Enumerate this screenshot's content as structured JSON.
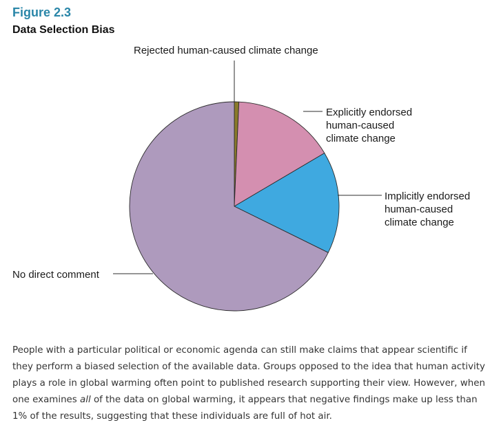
{
  "figure": {
    "label": "Figure 2.3",
    "title": "Data Selection Bias"
  },
  "chart_data": {
    "type": "pie",
    "title": "Data Selection Bias",
    "slices": [
      {
        "name": "Rejected human-caused climate change",
        "value": 0.7,
        "color": "#8a7a2a",
        "label_lines": [
          "Rejected human-caused climate change"
        ]
      },
      {
        "name": "Explicitly endorsed human-caused climate change",
        "value": 15.8,
        "color": "#d48fb0",
        "label_lines": [
          "Explicitly endorsed",
          "human-caused",
          "climate change"
        ]
      },
      {
        "name": "Implicitly endorsed human-caused climate change",
        "value": 15.8,
        "color": "#3fa9e0",
        "label_lines": [
          "Implicitly endorsed",
          "human-caused",
          "climate change"
        ]
      },
      {
        "name": "No direct comment",
        "value": 67.7,
        "color": "#ae9abd",
        "label_lines": [
          "No direct comment"
        ]
      }
    ],
    "start": "top",
    "direction": "clockwise",
    "legend": "none"
  },
  "caption": {
    "part1": "People with a particular political or economic agenda can still make claims that appear scientific if they perform a biased selection of the available data. Groups opposed to the idea that human activity plays a role in global warming often point to published research supporting their view. However, when one examines ",
    "emphasis": "all",
    "part2": " of the data on global warming, it appears that negative findings make up less than 1% of the results, suggesting that these individuals are full of hot air."
  }
}
